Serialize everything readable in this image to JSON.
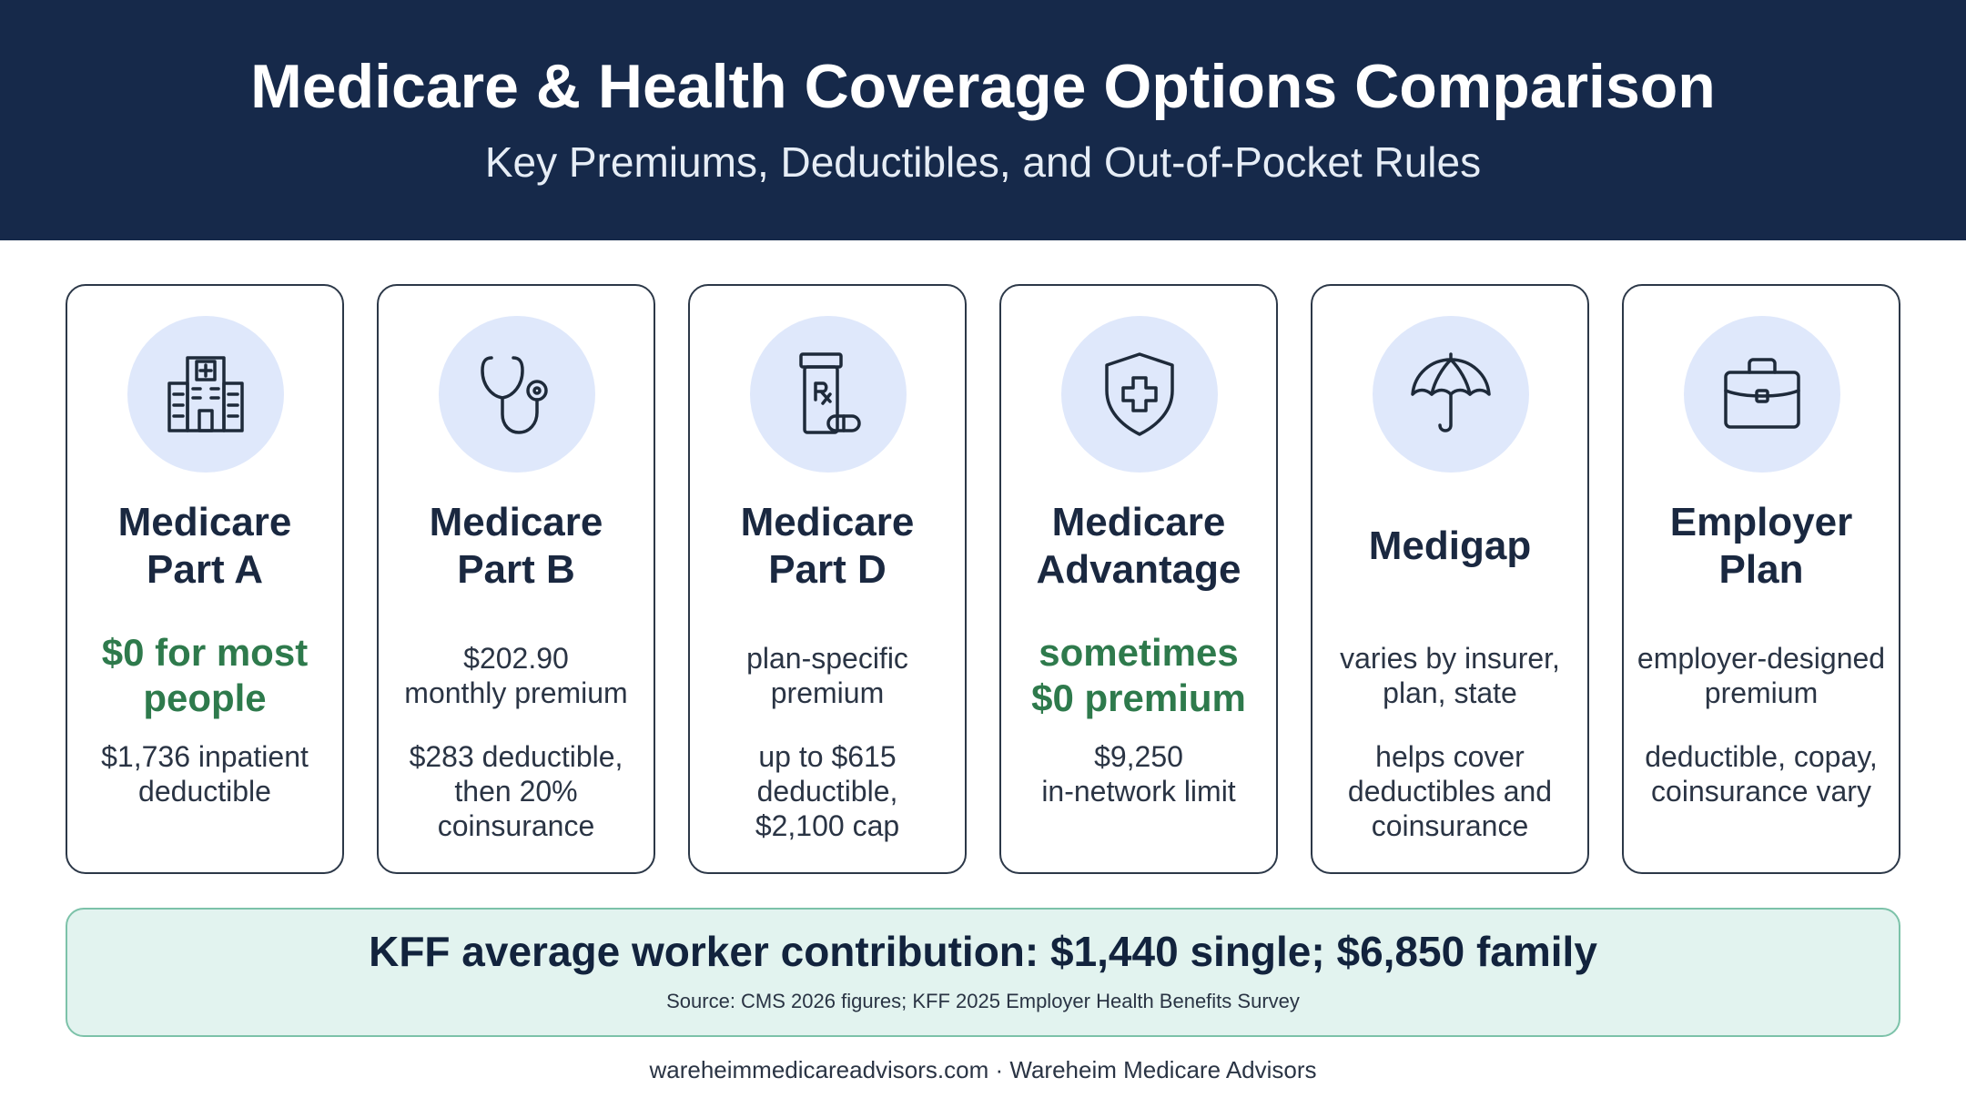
{
  "header": {
    "title": "Medicare & Health Coverage Options Comparison",
    "subtitle": "Key Premiums, Deductibles, and Out-of-Pocket Rules"
  },
  "cards": [
    {
      "icon": "hospital-icon",
      "title_lines": [
        "Medicare",
        "Part A"
      ],
      "premium_lines": [
        "$0 for most",
        "people"
      ],
      "premium_highlight": true,
      "detail_lines": [
        "$1,736 inpatient",
        "deductible"
      ]
    },
    {
      "icon": "stethoscope-icon",
      "title_lines": [
        "Medicare",
        "Part B"
      ],
      "premium_lines": [
        "$202.90",
        "monthly premium"
      ],
      "premium_highlight": false,
      "detail_lines": [
        "$283 deductible,",
        "then 20%",
        "coinsurance"
      ]
    },
    {
      "icon": "prescription-bottle-icon",
      "title_lines": [
        "Medicare",
        "Part D"
      ],
      "premium_lines": [
        "plan-specific",
        "premium"
      ],
      "premium_highlight": false,
      "detail_lines": [
        "up to $615",
        "deductible,",
        "$2,100 cap"
      ]
    },
    {
      "icon": "shield-cross-icon",
      "title_lines": [
        "Medicare",
        "Advantage"
      ],
      "premium_lines": [
        "sometimes",
        "$0 premium"
      ],
      "premium_highlight": true,
      "detail_lines": [
        "$9,250",
        "in-network limit"
      ]
    },
    {
      "icon": "umbrella-icon",
      "title_lines": [
        "Medigap"
      ],
      "premium_lines": [
        "varies by insurer,",
        "plan, state"
      ],
      "premium_highlight": false,
      "detail_lines": [
        "helps cover",
        "deductibles and",
        "coinsurance"
      ]
    },
    {
      "icon": "briefcase-icon",
      "title_lines": [
        "Employer",
        "Plan"
      ],
      "premium_lines": [
        "employer-designed",
        "premium"
      ],
      "premium_highlight": false,
      "detail_lines": [
        "deductible, copay,",
        "coinsurance vary"
      ]
    }
  ],
  "banner": {
    "main": "KFF average worker contribution: $1,440 single; $6,850 family",
    "source": "Source: CMS 2026 figures; KFF 2025 Employer Health Benefits Survey"
  },
  "footer": "wareheimmedicareadvisors.com · Wareheim Medicare Advisors",
  "colors": {
    "header_bg": "#16294a",
    "icon_bg": "#dfe8fb",
    "highlight_green": "#2e7a4c",
    "banner_bg": "#e2f3ef",
    "banner_border": "#7cc2a9"
  }
}
